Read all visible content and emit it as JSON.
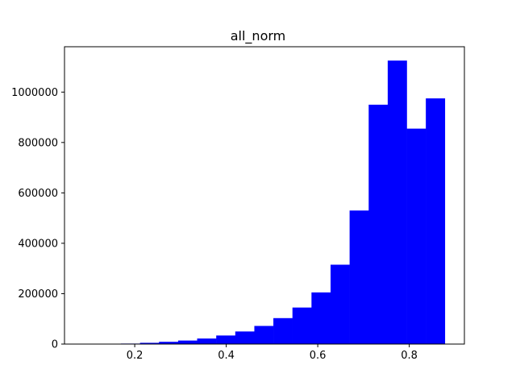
{
  "chart_data": {
    "type": "bar",
    "title": "all_norm",
    "xlabel": "",
    "ylabel": "",
    "xlim": [
      0.0465,
      0.9205
    ],
    "ylim": [
      0,
      1180000
    ],
    "bar_color": "#0000ff",
    "grid": false,
    "legend": "none",
    "xticks": [
      0.2,
      0.4,
      0.6,
      0.8
    ],
    "xtick_labels": [
      "0.2",
      "0.4",
      "0.6",
      "0.8"
    ],
    "yticks": [
      0,
      200000,
      400000,
      600000,
      800000,
      1000000
    ],
    "ytick_labels": [
      "0",
      "200000",
      "400000",
      "600000",
      "800000",
      "1000000"
    ],
    "bin_edges": [
      0.0865,
      0.1282,
      0.1698,
      0.2115,
      0.2531,
      0.2948,
      0.3364,
      0.3781,
      0.4197,
      0.4614,
      0.503,
      0.5447,
      0.5863,
      0.628,
      0.6696,
      0.7113,
      0.7529,
      0.7946,
      0.8362,
      0.8779
    ],
    "bin_width": 0.0416,
    "values": [
      300,
      1000,
      2000,
      5000,
      9000,
      14000,
      22000,
      34000,
      50000,
      72000,
      103000,
      145000,
      205000,
      315000,
      530000,
      950000,
      1125000,
      855000,
      975000
    ]
  }
}
